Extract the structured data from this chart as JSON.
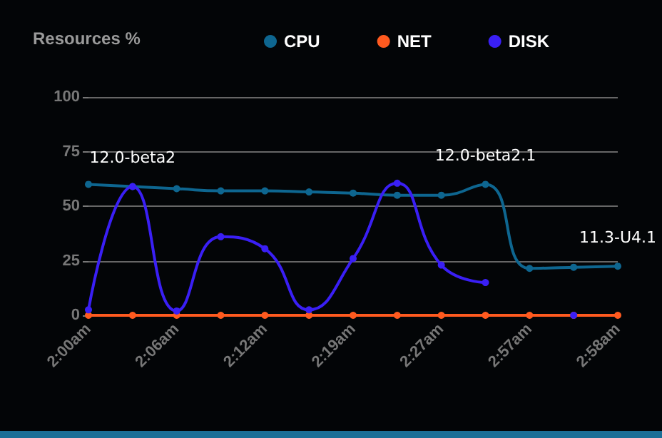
{
  "chart_data": {
    "type": "line",
    "title": "Resources %",
    "categories": [
      "2:00am",
      null,
      "2:06am",
      null,
      "2:12am",
      null,
      "2:19am",
      null,
      "2:27am",
      null,
      "2:57am",
      null,
      "2:58am"
    ],
    "series": [
      {
        "name": "CPU",
        "color": "#0e6690",
        "values": [
          60,
          59,
          58,
          57,
          57,
          56.5,
          56,
          55,
          55,
          60,
          21.5,
          22,
          22.5
        ],
        "value_labels": [
          null,
          "12.0-beta2",
          null,
          null,
          null,
          null,
          null,
          null,
          null,
          "12.0-beta2.1",
          null,
          null,
          "11.3-U4.1"
        ]
      },
      {
        "name": "NET",
        "color": "#ff5a1f",
        "values": [
          0,
          0,
          0,
          0,
          0,
          0,
          0,
          0,
          0,
          0,
          0,
          0,
          0
        ]
      },
      {
        "name": "DISK",
        "color": "#3a1ff5",
        "values": [
          2.5,
          59,
          2,
          36,
          30.5,
          2.5,
          26,
          60.5,
          23,
          15,
          null,
          0,
          null
        ]
      }
    ],
    "ylim": [
      0,
      100
    ],
    "yticks": [
      0,
      25,
      50,
      75,
      100
    ],
    "grid": "y",
    "legend": "top",
    "marker": "circle",
    "line_style": "solid"
  }
}
